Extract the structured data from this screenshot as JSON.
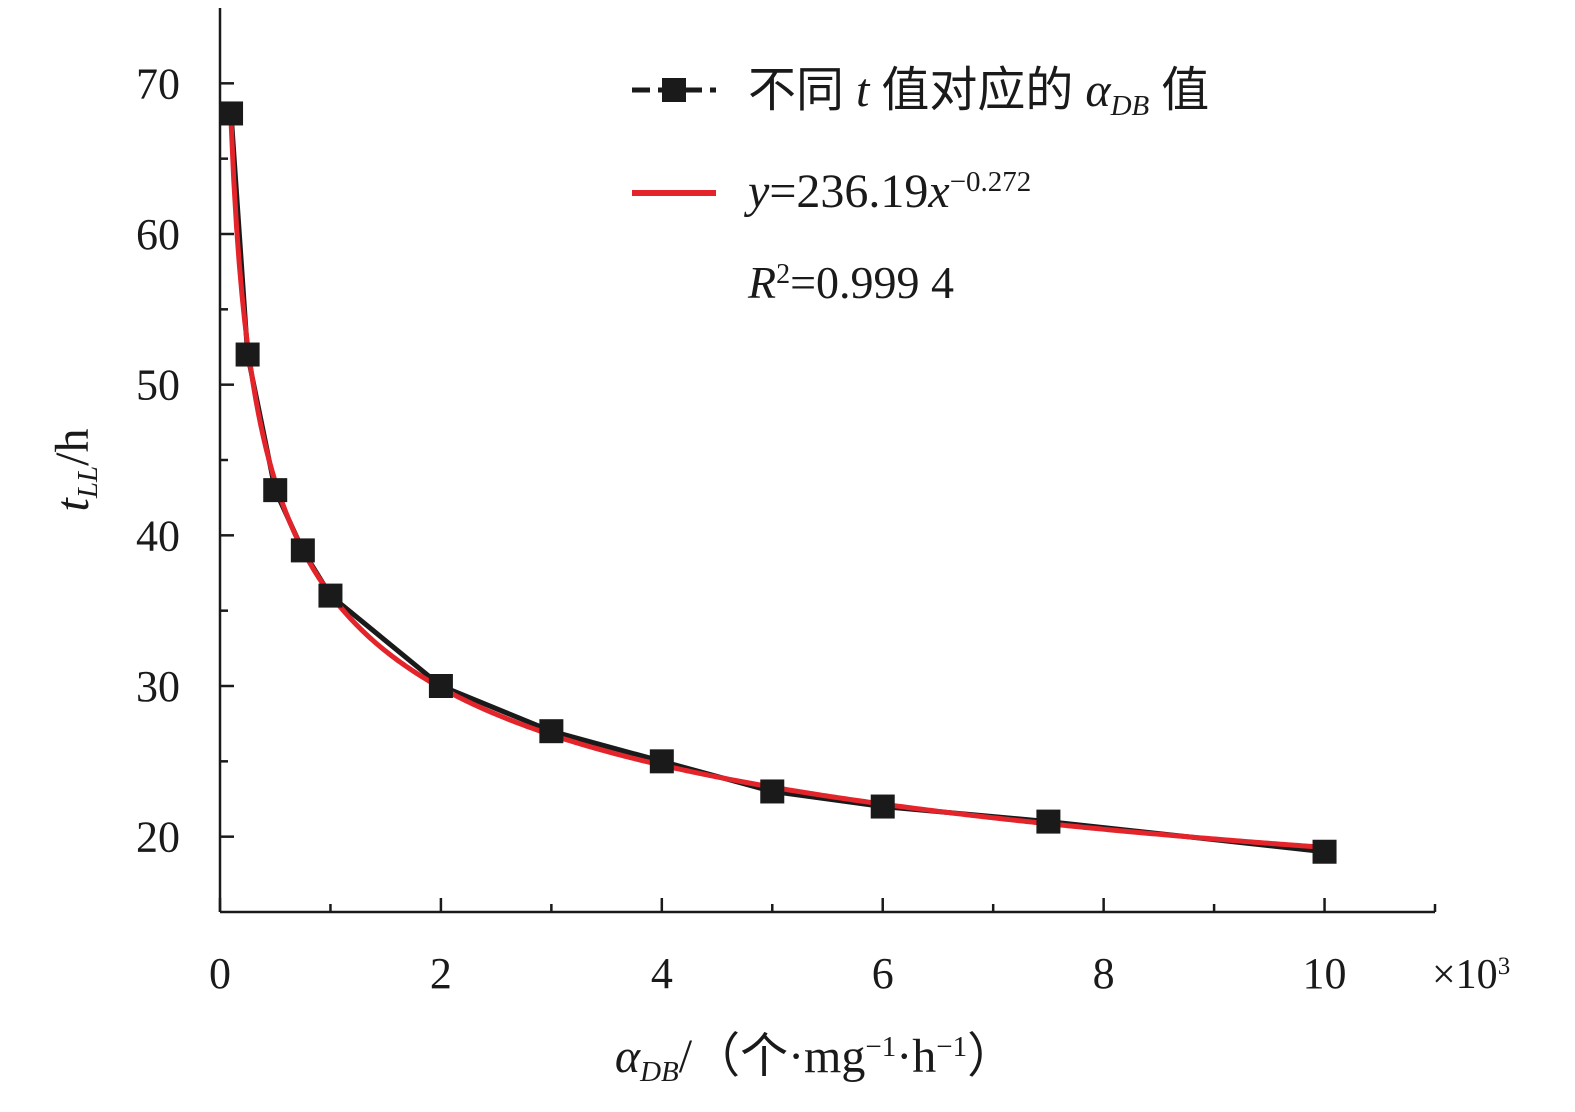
{
  "chart_data": {
    "type": "scatter",
    "title": "",
    "xlabel": {
      "parts": [
        {
          "text": "α",
          "style": "italic"
        },
        {
          "text": "DB",
          "style": "italic-sub"
        },
        {
          "text": "/（个·mg",
          "style": "normal"
        },
        {
          "text": "−1",
          "style": "sup"
        },
        {
          "text": "·h",
          "style": "normal"
        },
        {
          "text": "−1",
          "style": "sup"
        },
        {
          "text": "）",
          "style": "normal"
        }
      ]
    },
    "ylabel": {
      "parts": [
        {
          "text": "t",
          "style": "italic"
        },
        {
          "text": "LL",
          "style": "italic-sub"
        },
        {
          "text": "/h",
          "style": "normal"
        }
      ]
    },
    "x_multiplier": {
      "base": "×10",
      "exp": "3"
    },
    "xlim": [
      0,
      11
    ],
    "ylim": [
      15,
      75
    ],
    "x_ticks": [
      0,
      2,
      4,
      6,
      8,
      10
    ],
    "x_tick_labels": [
      "0",
      "2",
      "4",
      "6",
      "8",
      "10"
    ],
    "x_minor_ticks": [
      1,
      3,
      5,
      7,
      9,
      11
    ],
    "y_ticks": [
      20,
      30,
      40,
      50,
      60,
      70
    ],
    "y_tick_labels": [
      "20",
      "30",
      "40",
      "50",
      "60",
      "70"
    ],
    "y_minor_ticks": [
      25,
      35,
      45,
      55,
      65
    ],
    "grid": false,
    "legend_position": "top-right",
    "series": [
      {
        "name_parts": [
          {
            "text": "不同 ",
            "style": "normal"
          },
          {
            "text": "t",
            "style": "italic"
          },
          {
            "text": " 值对应的 ",
            "style": "normal"
          },
          {
            "text": "α",
            "style": "italic"
          },
          {
            "text": "DB",
            "style": "italic-sub"
          },
          {
            "text": " 值",
            "style": "normal"
          }
        ],
        "kind": "line-marker",
        "color": "#1a1a1a",
        "marker": "square",
        "x": [
          0.1,
          0.25,
          0.5,
          0.75,
          1,
          2,
          3,
          4,
          5,
          6,
          7.5,
          10
        ],
        "y": [
          68,
          52,
          43,
          39,
          36,
          30,
          27,
          25,
          23,
          22,
          21,
          19
        ]
      },
      {
        "name_parts": [
          {
            "text": "y",
            "style": "italic"
          },
          {
            "text": "=236.19",
            "style": "normal"
          },
          {
            "text": "x",
            "style": "italic"
          },
          {
            "text": "−0.272",
            "style": "sup"
          }
        ],
        "kind": "fit-curve",
        "color": "#e3242b",
        "model": "power",
        "coefficient": 236.19,
        "exponent": -0.272,
        "x_units_multiplier": 1000,
        "x_range": [
          0.1,
          10
        ]
      }
    ],
    "annotations": [
      {
        "parts": [
          {
            "text": "R",
            "style": "italic"
          },
          {
            "text": "2",
            "style": "sup"
          },
          {
            "text": "=0.999 4",
            "style": "normal"
          }
        ]
      }
    ]
  }
}
